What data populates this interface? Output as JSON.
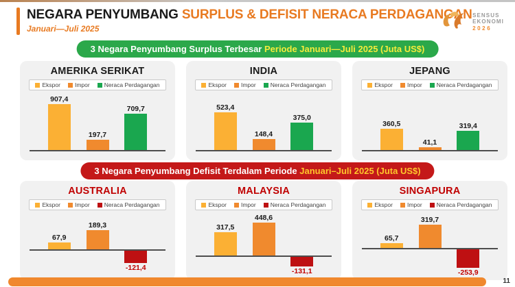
{
  "page": {
    "title_black": "NEGARA PENYUMBANG",
    "title_orange": " SURPLUS & DEFISIT NERACA PERDAGANGAN",
    "subtitle": "Januari—Juli 2025",
    "page_number": "11",
    "accent_orange": "#E87A21"
  },
  "logo": {
    "line1": "SENSUS",
    "line2": "EKONOMI",
    "year": "2026"
  },
  "banners": {
    "surplus": {
      "text": "3 Negara Penyumbang Surplus Terbesar ",
      "highlight": "Periode Januari—Juli 2025 (Juta US$)",
      "bg": "#2BA84A",
      "highlight_color": "#F5EC3B"
    },
    "deficit": {
      "text": "3 Negara Penyumbang Defisit Terdalam Periode ",
      "highlight": "Januari–Juli 2025 (Juta US$)",
      "bg": "#C41919",
      "highlight_color": "#FFC72C"
    }
  },
  "chart_data": [
    {
      "type": "bar",
      "group": "surplus",
      "title": "AMERIKA SERIKAT",
      "title_color": "#1a1a1a",
      "categories": [
        "Ekspor",
        "Impor",
        "Neraca Perdagangan"
      ],
      "values": [
        907.4,
        197.7,
        709.7
      ],
      "labels": [
        "907,4",
        "197,7",
        "709,7"
      ],
      "colors": [
        "#FBB034",
        "#F08A2E",
        "#1AA74F"
      ],
      "ylim": [
        0,
        1000
      ]
    },
    {
      "type": "bar",
      "group": "surplus",
      "title": "INDIA",
      "title_color": "#1a1a1a",
      "categories": [
        "Ekspor",
        "Impor",
        "Neraca Perdagangan"
      ],
      "values": [
        523.4,
        148.4,
        375.0
      ],
      "labels": [
        "523,4",
        "148,4",
        "375,0"
      ],
      "colors": [
        "#FBB034",
        "#F08A2E",
        "#1AA74F"
      ],
      "ylim": [
        0,
        700
      ]
    },
    {
      "type": "bar",
      "group": "surplus",
      "title": "JEPANG",
      "title_color": "#1a1a1a",
      "categories": [
        "Ekspor",
        "Impor",
        "Neraca Perdagangan"
      ],
      "values": [
        360.5,
        41.1,
        319.4
      ],
      "labels": [
        "360,5",
        "41,1",
        "319,4"
      ],
      "colors": [
        "#FBB034",
        "#F08A2E",
        "#1AA74F"
      ],
      "ylim": [
        0,
        850
      ]
    },
    {
      "type": "bar",
      "group": "deficit",
      "title": "AUSTRALIA",
      "title_color": "#C00000",
      "categories": [
        "Ekspor",
        "Impor",
        "Neraca Perdagangan"
      ],
      "values": [
        67.9,
        189.3,
        -121.4
      ],
      "labels": [
        "67,9",
        "189,3",
        "-121,4"
      ],
      "colors": [
        "#FBB034",
        "#F08A2E",
        "#BE1012"
      ],
      "ylim": [
        -200,
        300
      ]
    },
    {
      "type": "bar",
      "group": "deficit",
      "title": "MALAYSIA",
      "title_color": "#C00000",
      "categories": [
        "Ekspor",
        "Impor",
        "Neraca Perdagangan"
      ],
      "values": [
        317.5,
        448.6,
        -131.1
      ],
      "labels": [
        "317,5",
        "448,6",
        "-131,1"
      ],
      "colors": [
        "#FBB034",
        "#F08A2E",
        "#BE1012"
      ],
      "ylim": [
        -200,
        500
      ]
    },
    {
      "type": "bar",
      "group": "deficit",
      "title": "SINGAPURA",
      "title_color": "#C00000",
      "categories": [
        "Ekspor",
        "Impor",
        "Neraca Perdagangan"
      ],
      "values": [
        65.7,
        319.7,
        -253.9
      ],
      "labels": [
        "65,7",
        "319,7",
        "-253,9"
      ],
      "colors": [
        "#FBB034",
        "#F08A2E",
        "#BE1012"
      ],
      "ylim": [
        -300,
        400
      ]
    }
  ]
}
